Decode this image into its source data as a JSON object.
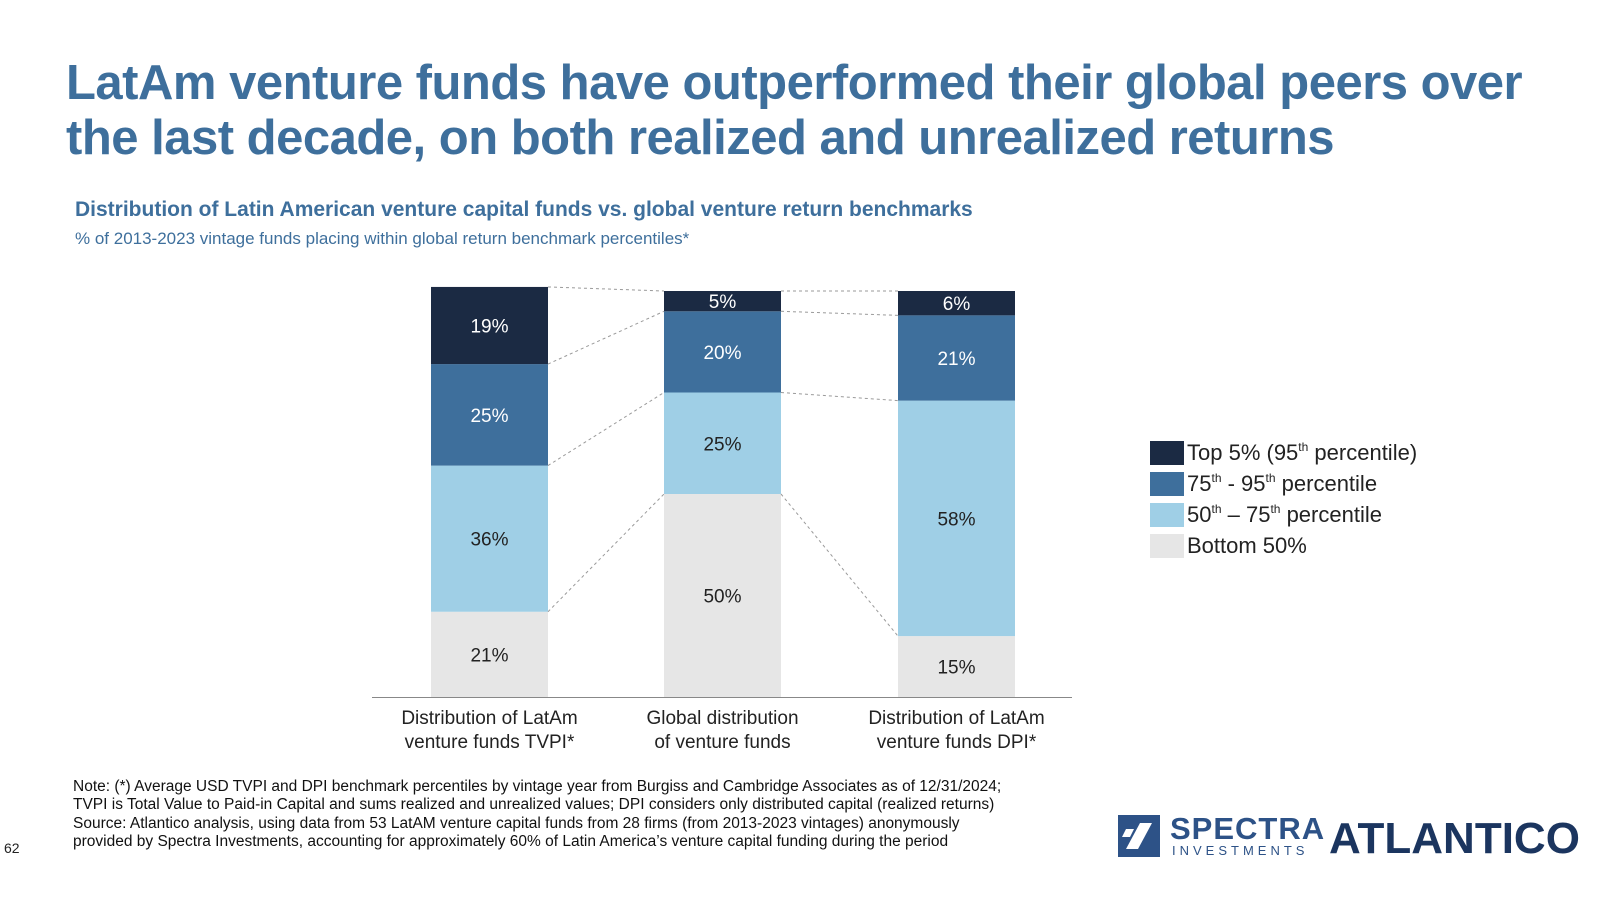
{
  "title": "LatAm venture funds have outperformed their global peers over the last decade, on both realized and unrealized returns",
  "chart_data": {
    "type": "bar",
    "stacked": true,
    "title": "Distribution of Latin American venture capital funds vs. global venture return benchmarks",
    "subtitle": "% of 2013-2023 vintage funds placing within global return benchmark percentiles*",
    "categories": [
      [
        "Distribution of LatAm",
        "venture funds TVPI*"
      ],
      [
        "Global distribution",
        "of venture funds"
      ],
      [
        "Distribution of LatAm",
        "venture funds DPI*"
      ]
    ],
    "series": [
      {
        "name": "Bottom 50%",
        "color": "#e6e6e6",
        "values": [
          21,
          50,
          15
        ]
      },
      {
        "name": "50th – 75th percentile",
        "color": "#9fcfe6",
        "values": [
          36,
          25,
          58
        ]
      },
      {
        "name": "75th - 95th percentile",
        "color": "#3e6f9c",
        "values": [
          25,
          20,
          21
        ]
      },
      {
        "name": "Top 5% (95th percentile)",
        "color": "#1b2a43",
        "values": [
          19,
          5,
          6
        ]
      }
    ],
    "ylim": [
      0,
      100
    ],
    "units": "%",
    "xlabel": "",
    "ylabel": "",
    "grid": false,
    "legend_position": "right"
  },
  "legend": [
    {
      "base": "Top 5% (95",
      "sup": "th",
      "tail": " percentile)",
      "color": "#1b2a43"
    },
    {
      "base": "75",
      "sup": "th",
      "mid": " - 95",
      "sup2": "th",
      "tail": " percentile",
      "color": "#3e6f9c"
    },
    {
      "base": "50",
      "sup": "th",
      "mid": " – 75",
      "sup2": "th",
      "tail": " percentile",
      "color": "#9fcfe6"
    },
    {
      "base": "Bottom 50%",
      "color": "#e6e6e6"
    }
  ],
  "note": [
    "Note: (*) Average USD TVPI and DPI benchmark percentiles by vintage year from Burgiss and Cambridge Associates as of 12/31/2024;",
    "TVPI is Total Value to Paid-in Capital and sums realized and unrealized values; DPI considers only distributed capital (realized returns)",
    "Source: Atlantico analysis, using data from 53 LatAM venture capital funds from 28 firms (from 2013-2023 vintages) anonymously",
    "provided by Spectra Investments, accounting for approximately 60% of Latin America’s venture capital funding during the period"
  ],
  "page_number": "62",
  "logos": {
    "spectra_name": "SPECTRA",
    "spectra_sub": "INVESTMENTS",
    "atlantico": "ATLANTICO"
  }
}
